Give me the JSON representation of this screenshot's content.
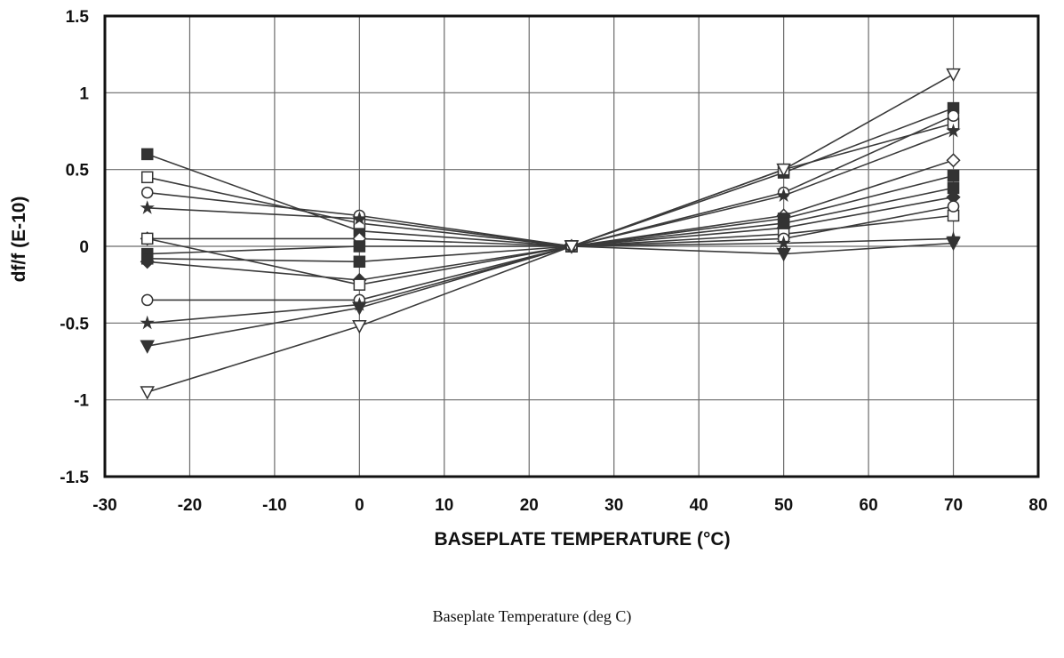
{
  "chart_data": {
    "type": "line",
    "xlabel": "BASEPLATE TEMPERATURE (°C)",
    "ylabel": "df/f  (E-10)",
    "xlim": [
      -30,
      80
    ],
    "ylim": [
      -1.5,
      1.5
    ],
    "xticks": [
      -30,
      -20,
      -10,
      0,
      10,
      20,
      30,
      40,
      50,
      60,
      70,
      80
    ],
    "yticks": [
      -1.5,
      -1,
      -0.5,
      0,
      0.5,
      1,
      1.5
    ],
    "grid": true,
    "x": [
      -25,
      0,
      25,
      50,
      70
    ],
    "series": [
      {
        "values": [
          0.6,
          0.1,
          0,
          0.48,
          0.9
        ],
        "marker": "square-filled"
      },
      {
        "values": [
          0.45,
          0.15,
          0,
          0.5,
          0.8
        ],
        "marker": "square-open"
      },
      {
        "values": [
          0.35,
          0.2,
          0,
          0.35,
          0.85
        ],
        "marker": "circle-open"
      },
      {
        "values": [
          0.25,
          0.18,
          0,
          0.33,
          0.75
        ],
        "marker": "star"
      },
      {
        "values": [
          0.05,
          0.05,
          0,
          0.2,
          0.56
        ],
        "marker": "diamond-open"
      },
      {
        "values": [
          -0.05,
          0,
          0,
          0.18,
          0.46
        ],
        "marker": "square-filled"
      },
      {
        "values": [
          -0.08,
          -0.1,
          0,
          0.15,
          0.38
        ],
        "marker": "square-filled"
      },
      {
        "values": [
          -0.1,
          -0.22,
          0,
          0.12,
          0.32
        ],
        "marker": "diamond-filled"
      },
      {
        "values": [
          0.05,
          -0.25,
          0,
          0.08,
          0.2
        ],
        "marker": "square-open"
      },
      {
        "values": [
          -0.35,
          -0.35,
          0,
          0.05,
          0.26
        ],
        "marker": "circle-open"
      },
      {
        "values": [
          -0.5,
          -0.38,
          0,
          0.02,
          0.05
        ],
        "marker": "star"
      },
      {
        "values": [
          -0.65,
          -0.4,
          0,
          -0.05,
          0.02
        ],
        "marker": "triangle-down-filled"
      },
      {
        "values": [
          -0.95,
          -0.52,
          0,
          0.5,
          1.12
        ],
        "marker": "triangle-down-open"
      }
    ]
  },
  "caption": "Baseplate Temperature (deg C)"
}
